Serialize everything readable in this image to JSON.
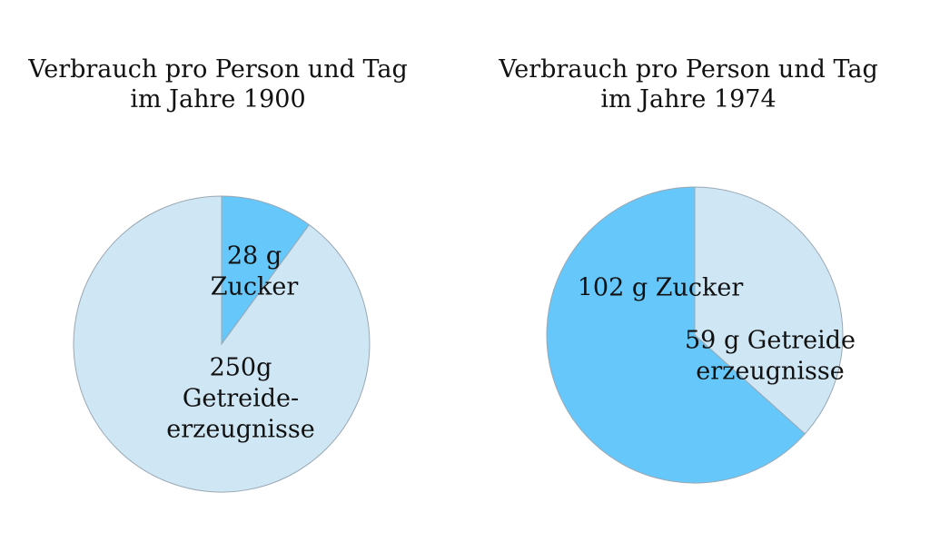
{
  "chart_data": [
    {
      "type": "pie",
      "title_lines": [
        "Verbrauch pro Person und Tag",
        "im Jahre 1900"
      ],
      "categories": [
        "Zucker",
        "Getreideerzeugnisse"
      ],
      "values": [
        28,
        250
      ],
      "units": "g",
      "slice_labels": [
        [
          "28 g",
          "Zucker"
        ],
        [
          "250g",
          "Getreide-",
          "erzeugnisse"
        ]
      ],
      "colors": [
        "#66c7fa",
        "#cfe6f5"
      ]
    },
    {
      "type": "pie",
      "title_lines": [
        "Verbrauch pro Person und Tag",
        "im Jahre 1974"
      ],
      "categories": [
        "Zucker",
        "Getreideerzeugnisse"
      ],
      "values": [
        102,
        59
      ],
      "units": "g",
      "slice_labels": [
        [
          "102 g Zucker"
        ],
        [
          "59 g Getreide",
          "erzeugnisse"
        ]
      ],
      "colors": [
        "#66c7fa",
        "#cfe6f5"
      ]
    }
  ]
}
